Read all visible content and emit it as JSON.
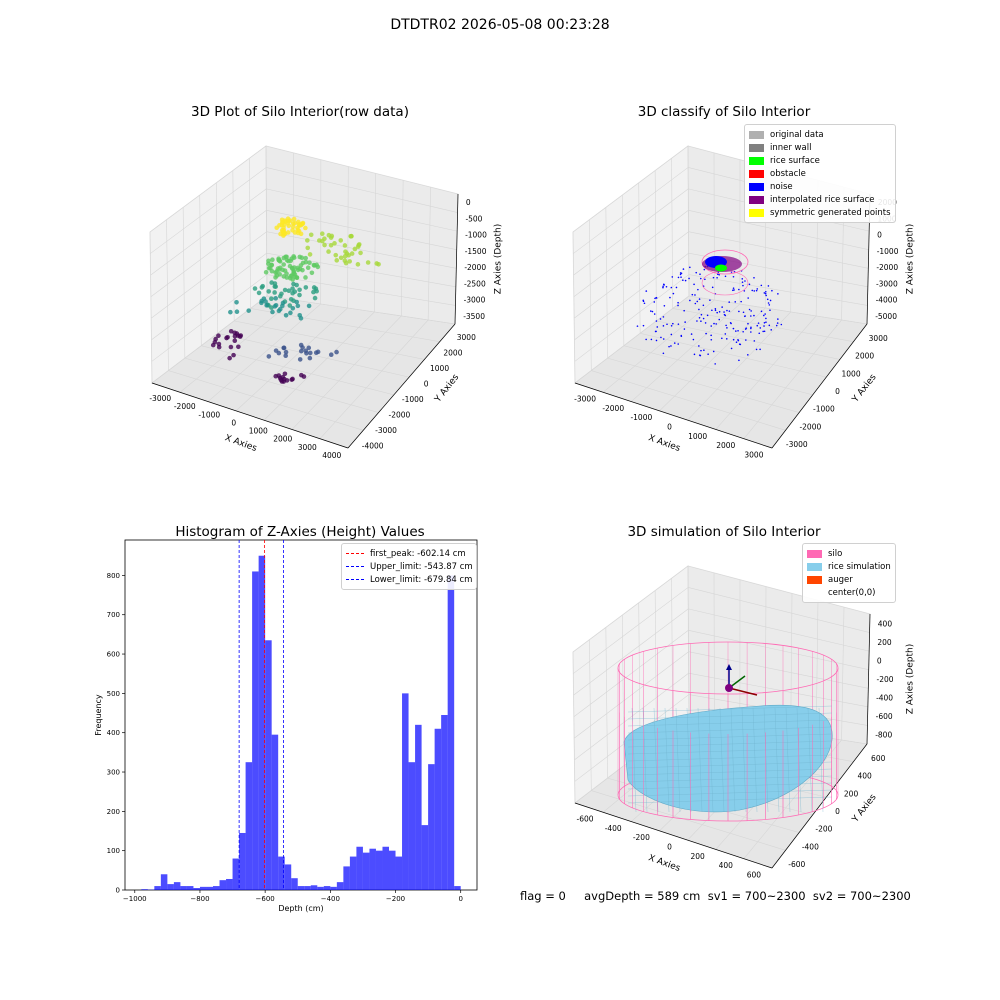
{
  "figure": {
    "suptitle": "DTDTR02 2026-05-08 00:23:28"
  },
  "panels": {
    "p1": {
      "title": "3D Plot of Silo Interior(row data)",
      "xlabel": "X Axies",
      "ylabel": "Y Axies",
      "zlabel": "Z Axies (Depth)",
      "xticks": [
        "-3000",
        "-2000",
        "-1000",
        "0",
        "1000",
        "2000",
        "3000",
        "4000"
      ],
      "yticks": [
        "-4000",
        "-3000",
        "-2000",
        "-1000",
        "0",
        "1000",
        "2000",
        "3000"
      ],
      "zticks": [
        "0",
        "-500",
        "-1000",
        "-1500",
        "-2000",
        "-2500",
        "-3000",
        "-3500"
      ]
    },
    "p2": {
      "title": "3D classify of Silo Interior",
      "xlabel": "X Axies",
      "ylabel": "Y Axies",
      "zlabel": "Z Axies (Depth)",
      "xticks": [
        "-3000",
        "-2000",
        "-1000",
        "0",
        "1000",
        "2000",
        "3000"
      ],
      "yticks": [
        "-3000",
        "-2000",
        "-1000",
        "0",
        "1000",
        "2000",
        "3000"
      ],
      "zticks": [
        "2000",
        "1000",
        "0",
        "-1000",
        "-2000",
        "-3000",
        "-4000",
        "-5000"
      ],
      "legend": [
        {
          "label": "original data",
          "color": "#b0b0b0"
        },
        {
          "label": "inner wall",
          "color": "#808080"
        },
        {
          "label": "rice surface",
          "color": "#00ff00"
        },
        {
          "label": "obstacle",
          "color": "#ff0000"
        },
        {
          "label": "noise",
          "color": "#0000ff"
        },
        {
          "label": "interpolated rice surface",
          "color": "#800080"
        },
        {
          "label": "symmetric generated points",
          "color": "#ffff00"
        }
      ]
    },
    "p3": {
      "title": "Histogram of Z-Axies (Height) Values",
      "legend": [
        {
          "label": "first_peak: -602.14 cm",
          "color": "#ff0000"
        },
        {
          "label": "Upper_limit: -543.87 cm",
          "color": "#0000ff"
        },
        {
          "label": "Lower_limit: -679.84 cm",
          "color": "#0000ff"
        }
      ]
    },
    "p4": {
      "title": "3D simulation of Silo Interior",
      "xlabel": "X Axies",
      "ylabel": "Y Axies",
      "zlabel": "Z Axies (Depth)",
      "xticks": [
        "-600",
        "-400",
        "-200",
        "0",
        "200",
        "400",
        "600"
      ],
      "yticks": [
        "-600",
        "-400",
        "-200",
        "0",
        "200",
        "400",
        "600"
      ],
      "zticks": [
        "400",
        "200",
        "0",
        "-200",
        "-400",
        "-600",
        "-800"
      ],
      "legend": [
        {
          "label": "silo",
          "color": "#ff69b4"
        },
        {
          "label": "rice simulation",
          "color": "#87ceeb"
        },
        {
          "label": "auger",
          "color": "#ff4500"
        },
        {
          "label": "center(0,0)",
          "color": "#ffffff"
        }
      ]
    },
    "footer": {
      "text": "flag = 0     avgDepth = 589 cm  sv1 = 700~2300  sv2 = 700~2300"
    }
  },
  "chart_data": [
    {
      "type": "scatter",
      "title": "3D Plot of Silo Interior(row data)",
      "xlabel": "X Axies",
      "ylabel": "Y Axies",
      "zlabel": "Z Axies (Depth)",
      "xlim": [
        -3500,
        4000
      ],
      "ylim": [
        -4000,
        3500
      ],
      "zlim": [
        -3700,
        100
      ],
      "colormap": "viridis (by depth)",
      "grid": true
    },
    {
      "type": "scatter",
      "title": "3D classify of Silo Interior",
      "xlabel": "X Axies",
      "ylabel": "Y Axies",
      "zlabel": "Z Axies (Depth)",
      "xlim": [
        -3500,
        3500
      ],
      "ylim": [
        -3500,
        3500
      ],
      "zlim": [
        -5500,
        2500
      ],
      "legend_position": "upper-right",
      "series": [
        {
          "name": "original data"
        },
        {
          "name": "inner wall"
        },
        {
          "name": "rice surface"
        },
        {
          "name": "obstacle"
        },
        {
          "name": "noise"
        },
        {
          "name": "interpolated rice surface"
        },
        {
          "name": "symmetric generated points"
        }
      ],
      "grid": true
    },
    {
      "type": "bar",
      "title": "Histogram of Z-Axies (Height) Values",
      "xlabel": "Depth (cm)",
      "ylabel": "Frequency",
      "xlim": [
        -1030,
        50
      ],
      "ylim": [
        0,
        890
      ],
      "xticks": [
        -1000,
        -800,
        -600,
        -400,
        -200,
        0
      ],
      "yticks": [
        0,
        100,
        200,
        300,
        400,
        500,
        600,
        700,
        800
      ],
      "bin_width": 20,
      "bin_starts": [
        -980,
        -960,
        -940,
        -920,
        -900,
        -880,
        -860,
        -840,
        -820,
        -800,
        -780,
        -760,
        -740,
        -720,
        -700,
        -680,
        -660,
        -640,
        -620,
        -600,
        -580,
        -560,
        -540,
        -520,
        -500,
        -480,
        -460,
        -440,
        -420,
        -400,
        -380,
        -360,
        -340,
        -320,
        -300,
        -280,
        -260,
        -240,
        -220,
        -200,
        -180,
        -160,
        -140,
        -120,
        -100,
        -80,
        -60,
        -40,
        -20
      ],
      "values": [
        2,
        1,
        10,
        40,
        15,
        20,
        10,
        10,
        5,
        8,
        8,
        10,
        25,
        28,
        80,
        145,
        325,
        810,
        850,
        635,
        395,
        85,
        65,
        30,
        10,
        10,
        12,
        8,
        10,
        8,
        20,
        60,
        85,
        110,
        95,
        105,
        100,
        110,
        100,
        85,
        500,
        325,
        420,
        165,
        320,
        410,
        445,
        800,
        10
      ],
      "bar_color": "#0000ff",
      "bar_alpha": 0.7,
      "vlines": [
        {
          "x": -602.14,
          "label": "first_peak: -602.14 cm",
          "color": "#ff0000",
          "style": "dashed"
        },
        {
          "x": -543.87,
          "label": "Upper_limit: -543.87 cm",
          "color": "#0000ff",
          "style": "dashed"
        },
        {
          "x": -679.84,
          "label": "Lower_limit: -679.84 cm",
          "color": "#0000ff",
          "style": "dashed"
        }
      ],
      "legend_position": "upper-right"
    },
    {
      "type": "scatter",
      "title": "3D simulation of Silo Interior",
      "xlabel": "X Axies",
      "ylabel": "Y Axies",
      "zlabel": "Z Axies (Depth)",
      "xlim": [
        -700,
        700
      ],
      "ylim": [
        -700,
        700
      ],
      "zlim": [
        -900,
        500
      ],
      "legend_position": "upper-right",
      "series": [
        {
          "name": "silo"
        },
        {
          "name": "rice simulation"
        },
        {
          "name": "auger"
        },
        {
          "name": "center(0,0)"
        }
      ],
      "grid": true
    }
  ]
}
